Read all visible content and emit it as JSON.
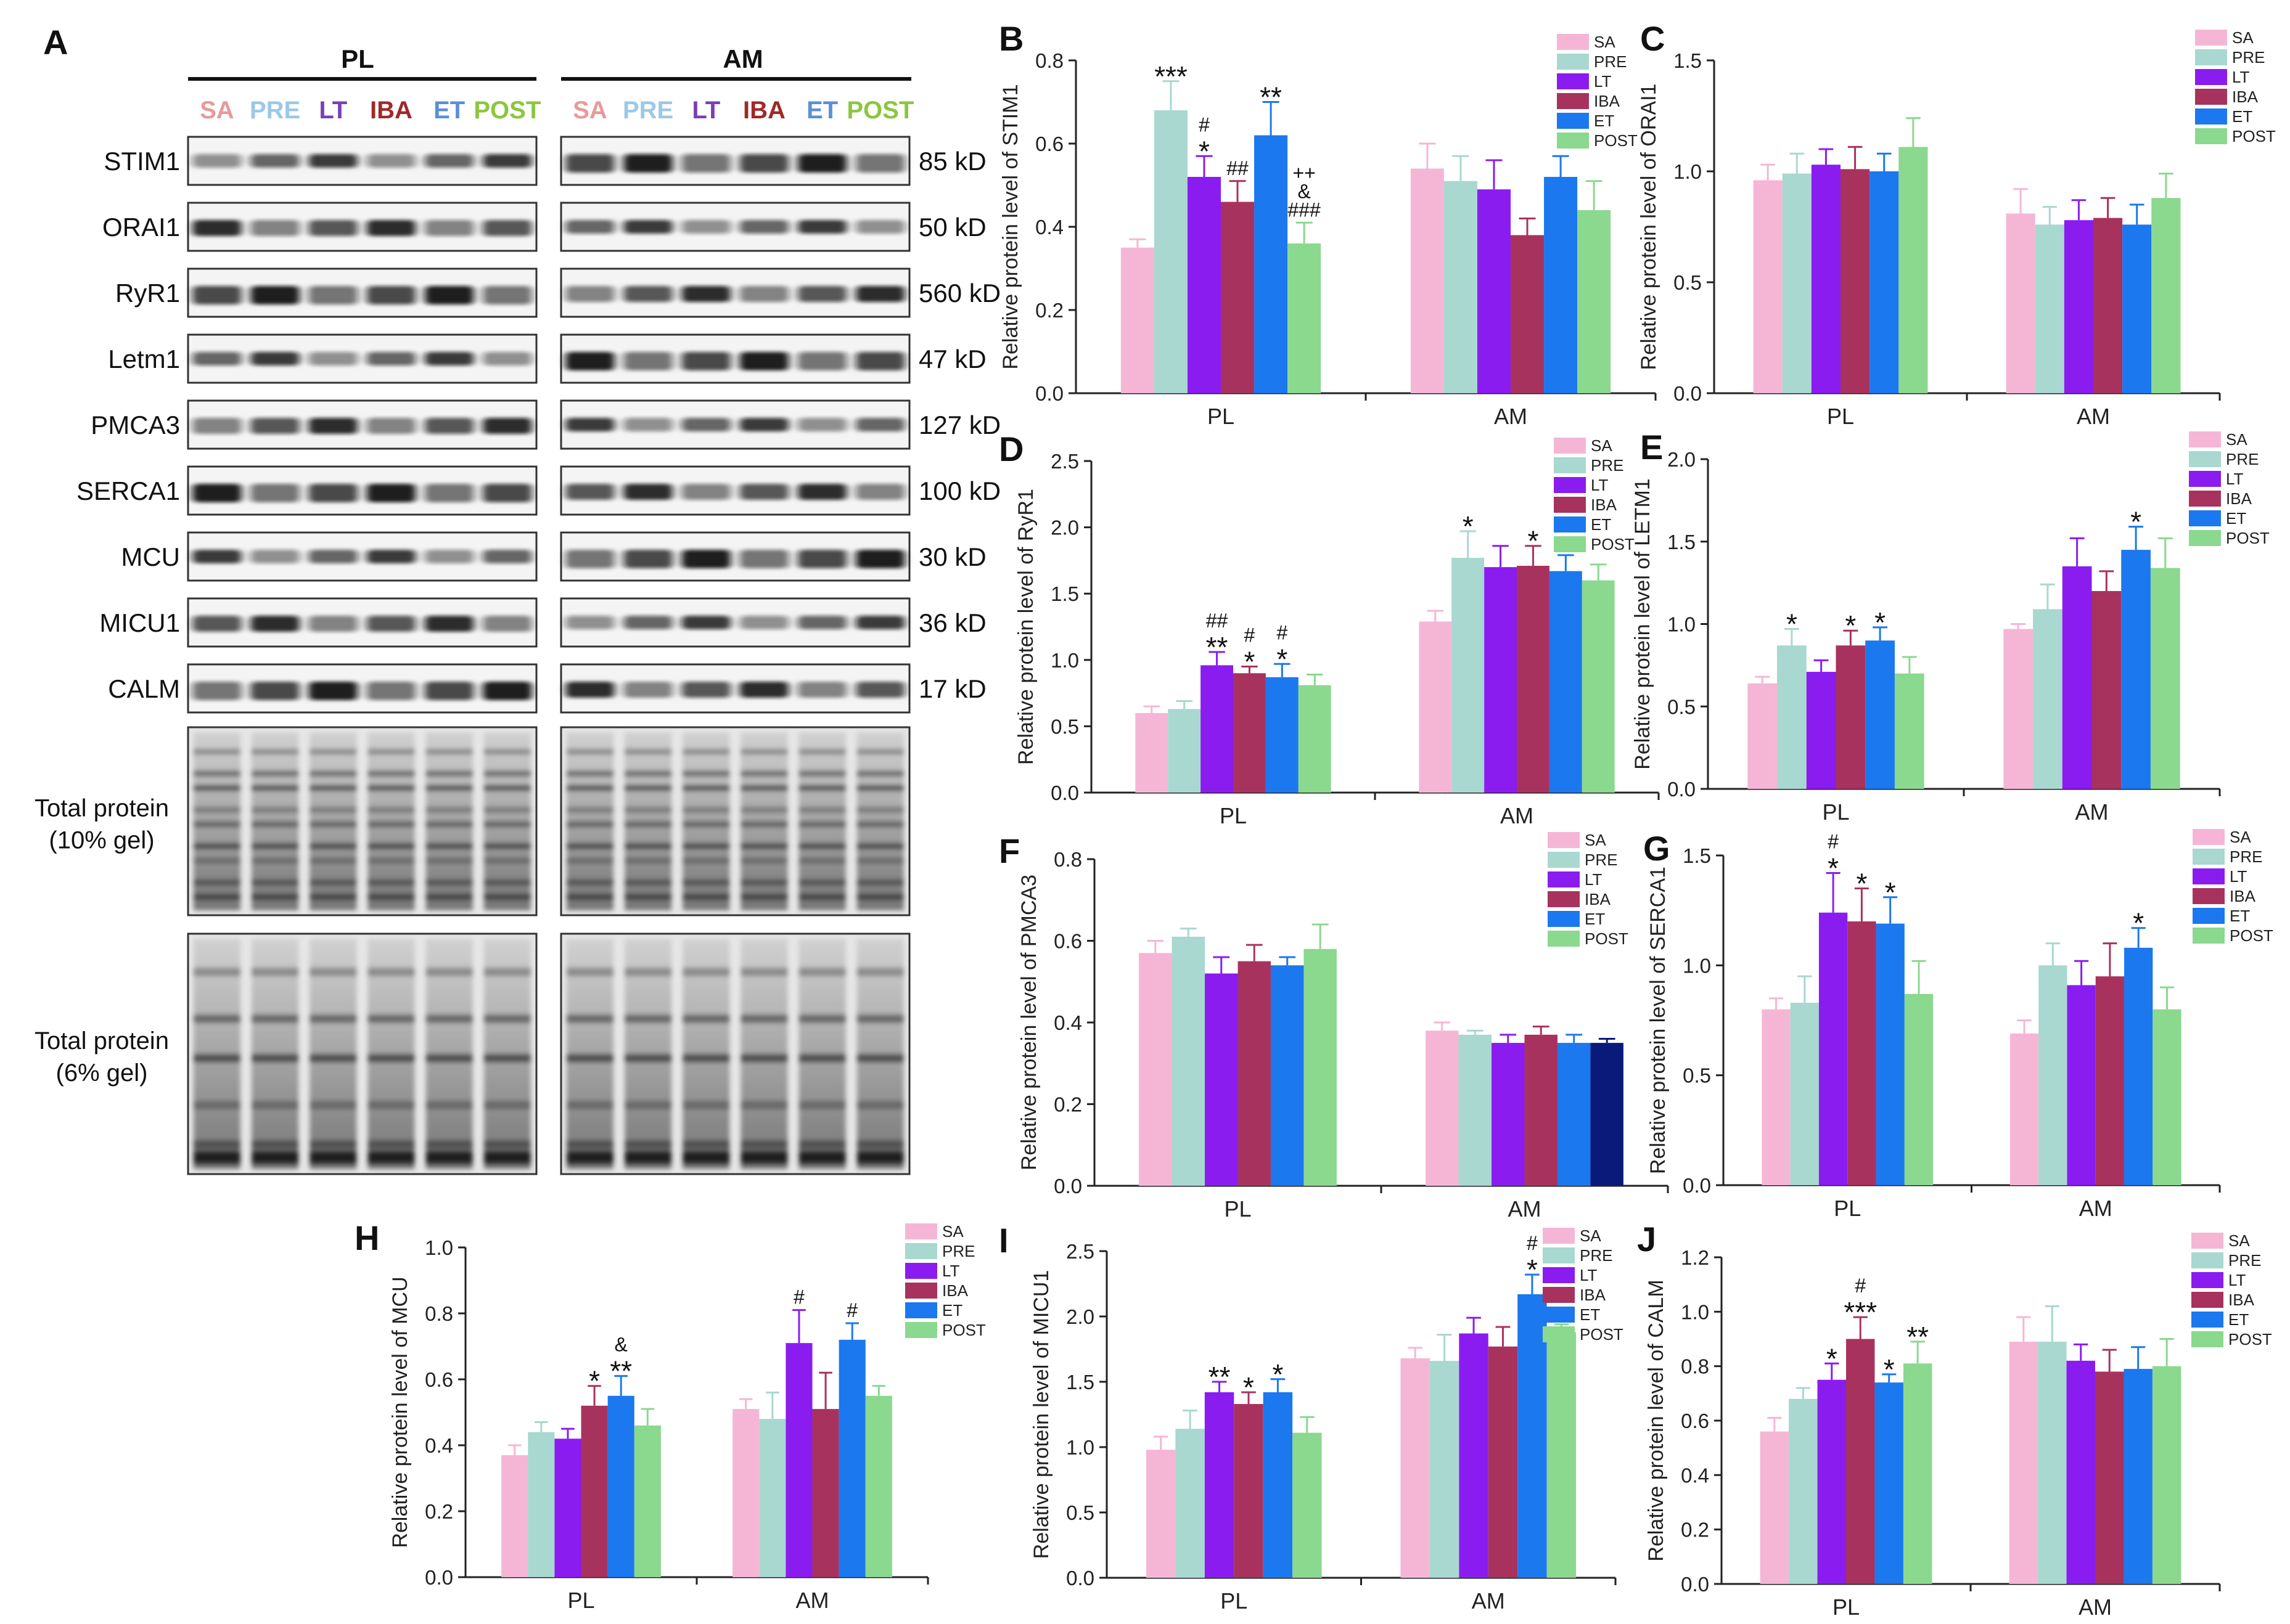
{
  "colors": {
    "SA": "#f5b6d6",
    "PRE": "#a8d8d0",
    "LT": "#8a1cf0",
    "IBA": "#a8325e",
    "ET": "#1b78ee",
    "POST": "#8bd88f",
    "ET_alt": "#0a1a7a",
    "axis": "#222222"
  },
  "blot_panel": {
    "letter": "A",
    "tissue_labels": [
      "PL",
      "AM"
    ],
    "lanes": [
      "SA",
      "PRE",
      "LT",
      "IBA",
      "ET",
      "POST"
    ],
    "lane_colors": [
      "#e89a9a",
      "#9cc8e8",
      "#7b3fb6",
      "#a02828",
      "#5b8fd6",
      "#8cc63f"
    ],
    "proteins": [
      {
        "name": "STIM1",
        "kd": "85 kD"
      },
      {
        "name": "ORAI1",
        "kd": "50 kD"
      },
      {
        "name": "RyR1",
        "kd": "560 kD"
      },
      {
        "name": "Letm1",
        "kd": "47 kD"
      },
      {
        "name": "PMCA3",
        "kd": "127 kD"
      },
      {
        "name": "SERCA1",
        "kd": "100 kD"
      },
      {
        "name": "MCU",
        "kd": "30 kD"
      },
      {
        "name": "MICU1",
        "kd": "36 kD"
      },
      {
        "name": "CALM",
        "kd": "17 kD"
      }
    ],
    "total_labels": [
      [
        "Total protein",
        "(10% gel)"
      ],
      [
        "Total protein",
        "(6% gel)"
      ]
    ]
  },
  "chart_data": [
    {
      "letter": "B",
      "type": "bar",
      "ylabel": "Relative protein level of STIM1",
      "categories": [
        "PL",
        "AM"
      ],
      "ylim": [
        0,
        0.8
      ],
      "yticks": [
        0.0,
        0.2,
        0.4,
        0.6,
        0.8
      ],
      "series": [
        {
          "name": "SA",
          "values": [
            0.35,
            0.54
          ],
          "errors": [
            0.02,
            0.06
          ]
        },
        {
          "name": "PRE",
          "values": [
            0.68,
            0.51
          ],
          "errors": [
            0.07,
            0.06
          ]
        },
        {
          "name": "LT",
          "values": [
            0.52,
            0.49
          ],
          "errors": [
            0.05,
            0.07
          ]
        },
        {
          "name": "IBA",
          "values": [
            0.46,
            0.38
          ],
          "errors": [
            0.05,
            0.04
          ]
        },
        {
          "name": "ET",
          "values": [
            0.62,
            0.52
          ],
          "errors": [
            0.08,
            0.05
          ]
        },
        {
          "name": "POST",
          "values": [
            0.36,
            0.44
          ],
          "errors": [
            0.05,
            0.07
          ]
        }
      ],
      "annotations": [
        {
          "group": 0,
          "series": 1,
          "lines": [
            "***"
          ]
        },
        {
          "group": 0,
          "series": 2,
          "lines": [
            "#",
            "*"
          ]
        },
        {
          "group": 0,
          "series": 3,
          "lines": [
            "##"
          ]
        },
        {
          "group": 0,
          "series": 4,
          "lines": [
            "**"
          ]
        },
        {
          "group": 0,
          "series": 5,
          "lines": [
            "++",
            "&",
            "###"
          ]
        }
      ]
    },
    {
      "letter": "C",
      "type": "bar",
      "ylabel": "Relative protein level of ORAI1",
      "categories": [
        "PL",
        "AM"
      ],
      "ylim": [
        0,
        1.5
      ],
      "yticks": [
        0.0,
        0.5,
        1.0,
        1.5
      ],
      "series": [
        {
          "name": "SA",
          "values": [
            0.96,
            0.81
          ],
          "errors": [
            0.07,
            0.11
          ]
        },
        {
          "name": "PRE",
          "values": [
            0.99,
            0.76
          ],
          "errors": [
            0.09,
            0.08
          ]
        },
        {
          "name": "LT",
          "values": [
            1.03,
            0.78
          ],
          "errors": [
            0.07,
            0.09
          ]
        },
        {
          "name": "IBA",
          "values": [
            1.01,
            0.79
          ],
          "errors": [
            0.1,
            0.09
          ]
        },
        {
          "name": "ET",
          "values": [
            1.0,
            0.76
          ],
          "errors": [
            0.08,
            0.09
          ]
        },
        {
          "name": "POST",
          "values": [
            1.11,
            0.88
          ],
          "errors": [
            0.13,
            0.11
          ]
        }
      ],
      "annotations": []
    },
    {
      "letter": "D",
      "type": "bar",
      "ylabel": "Relative protein level of RyR1",
      "categories": [
        "PL",
        "AM"
      ],
      "ylim": [
        0,
        2.5
      ],
      "yticks": [
        0.0,
        0.5,
        1.0,
        1.5,
        2.0,
        2.5
      ],
      "series": [
        {
          "name": "SA",
          "values": [
            0.6,
            1.29
          ],
          "errors": [
            0.05,
            0.08
          ]
        },
        {
          "name": "PRE",
          "values": [
            0.63,
            1.77
          ],
          "errors": [
            0.06,
            0.2
          ]
        },
        {
          "name": "LT",
          "values": [
            0.96,
            1.7
          ],
          "errors": [
            0.1,
            0.16
          ]
        },
        {
          "name": "IBA",
          "values": [
            0.9,
            1.71
          ],
          "errors": [
            0.05,
            0.15
          ]
        },
        {
          "name": "ET",
          "values": [
            0.87,
            1.67
          ],
          "errors": [
            0.1,
            0.12
          ]
        },
        {
          "name": "POST",
          "values": [
            0.81,
            1.6
          ],
          "errors": [
            0.08,
            0.12
          ]
        }
      ],
      "annotations": [
        {
          "group": 0,
          "series": 2,
          "lines": [
            "##",
            "**"
          ]
        },
        {
          "group": 0,
          "series": 3,
          "lines": [
            "#",
            "*"
          ]
        },
        {
          "group": 0,
          "series": 4,
          "lines": [
            "#",
            "*"
          ]
        },
        {
          "group": 1,
          "series": 1,
          "lines": [
            "*"
          ]
        },
        {
          "group": 1,
          "series": 3,
          "lines": [
            "*"
          ]
        }
      ]
    },
    {
      "letter": "E",
      "type": "bar",
      "ylabel": "Relative protein level of LETM1",
      "categories": [
        "PL",
        "AM"
      ],
      "ylim": [
        0,
        2.0
      ],
      "yticks": [
        0.0,
        0.5,
        1.0,
        1.5,
        2.0
      ],
      "series": [
        {
          "name": "SA",
          "values": [
            0.64,
            0.97
          ],
          "errors": [
            0.04,
            0.03
          ]
        },
        {
          "name": "PRE",
          "values": [
            0.87,
            1.09
          ],
          "errors": [
            0.1,
            0.15
          ]
        },
        {
          "name": "LT",
          "values": [
            0.71,
            1.35
          ],
          "errors": [
            0.07,
            0.17
          ]
        },
        {
          "name": "IBA",
          "values": [
            0.87,
            1.2
          ],
          "errors": [
            0.09,
            0.12
          ]
        },
        {
          "name": "ET",
          "values": [
            0.9,
            1.45
          ],
          "errors": [
            0.08,
            0.14
          ]
        },
        {
          "name": "POST",
          "values": [
            0.7,
            1.34
          ],
          "errors": [
            0.1,
            0.18
          ]
        }
      ],
      "annotations": [
        {
          "group": 0,
          "series": 1,
          "lines": [
            "*"
          ]
        },
        {
          "group": 0,
          "series": 3,
          "lines": [
            "*"
          ]
        },
        {
          "group": 0,
          "series": 4,
          "lines": [
            "*"
          ]
        },
        {
          "group": 1,
          "series": 4,
          "lines": [
            "*"
          ]
        }
      ]
    },
    {
      "letter": "F",
      "type": "bar",
      "ylabel": "Relative protein level of PMCA3",
      "categories": [
        "PL",
        "AM"
      ],
      "ylim": [
        0,
        0.8
      ],
      "yticks": [
        0.0,
        0.2,
        0.4,
        0.6,
        0.8
      ],
      "series": [
        {
          "name": "SA",
          "values": [
            0.57,
            0.38
          ],
          "errors": [
            0.03,
            0.02
          ]
        },
        {
          "name": "PRE",
          "values": [
            0.61,
            0.37
          ],
          "errors": [
            0.02,
            0.01
          ]
        },
        {
          "name": "LT",
          "values": [
            0.52,
            0.35
          ],
          "errors": [
            0.04,
            0.02
          ]
        },
        {
          "name": "IBA",
          "values": [
            0.55,
            0.37
          ],
          "errors": [
            0.04,
            0.02
          ]
        },
        {
          "name": "ET",
          "values": [
            0.54,
            0.35
          ],
          "errors": [
            0.02,
            0.02
          ]
        },
        {
          "name": "POST",
          "values": [
            0.58,
            0.35
          ],
          "errors": [
            0.06,
            0.01
          ]
        }
      ],
      "annotations": []
    },
    {
      "letter": "G",
      "type": "bar",
      "ylabel": "Relative protein level of SERCA1",
      "categories": [
        "PL",
        "AM"
      ],
      "ylim": [
        0,
        1.5
      ],
      "yticks": [
        0.0,
        0.5,
        1.0,
        1.5
      ],
      "series": [
        {
          "name": "SA",
          "values": [
            0.8,
            0.69
          ],
          "errors": [
            0.05,
            0.06
          ]
        },
        {
          "name": "PRE",
          "values": [
            0.83,
            1.0
          ],
          "errors": [
            0.12,
            0.1
          ]
        },
        {
          "name": "LT",
          "values": [
            1.24,
            0.91
          ],
          "errors": [
            0.18,
            0.11
          ]
        },
        {
          "name": "IBA",
          "values": [
            1.2,
            0.95
          ],
          "errors": [
            0.15,
            0.15
          ]
        },
        {
          "name": "ET",
          "values": [
            1.19,
            1.08
          ],
          "errors": [
            0.12,
            0.09
          ]
        },
        {
          "name": "POST",
          "values": [
            0.87,
            0.8
          ],
          "errors": [
            0.15,
            0.1
          ]
        }
      ],
      "annotations": [
        {
          "group": 0,
          "series": 2,
          "lines": [
            "#",
            "*"
          ]
        },
        {
          "group": 0,
          "series": 3,
          "lines": [
            "*"
          ]
        },
        {
          "group": 0,
          "series": 4,
          "lines": [
            "*"
          ]
        },
        {
          "group": 1,
          "series": 4,
          "lines": [
            "*"
          ]
        }
      ]
    },
    {
      "letter": "H",
      "type": "bar",
      "ylabel": "Relative protein level of MCU",
      "categories": [
        "PL",
        "AM"
      ],
      "ylim": [
        0,
        1.0
      ],
      "yticks": [
        0.0,
        0.2,
        0.4,
        0.6,
        0.8,
        1.0
      ],
      "series": [
        {
          "name": "SA",
          "values": [
            0.37,
            0.51
          ],
          "errors": [
            0.03,
            0.03
          ]
        },
        {
          "name": "PRE",
          "values": [
            0.44,
            0.48
          ],
          "errors": [
            0.03,
            0.08
          ]
        },
        {
          "name": "LT",
          "values": [
            0.42,
            0.71
          ],
          "errors": [
            0.03,
            0.1
          ]
        },
        {
          "name": "IBA",
          "values": [
            0.52,
            0.51
          ],
          "errors": [
            0.06,
            0.11
          ]
        },
        {
          "name": "ET",
          "values": [
            0.55,
            0.72
          ],
          "errors": [
            0.06,
            0.05
          ]
        },
        {
          "name": "POST",
          "values": [
            0.46,
            0.55
          ],
          "errors": [
            0.05,
            0.03
          ]
        }
      ],
      "annotations": [
        {
          "group": 0,
          "series": 3,
          "lines": [
            "*"
          ]
        },
        {
          "group": 0,
          "series": 4,
          "lines": [
            "&",
            "**"
          ]
        },
        {
          "group": 1,
          "series": 2,
          "lines": [
            "#"
          ]
        },
        {
          "group": 1,
          "series": 4,
          "lines": [
            "#"
          ]
        }
      ]
    },
    {
      "letter": "I",
      "type": "bar",
      "ylabel": "Relative protein level of MICU1",
      "categories": [
        "PL",
        "AM"
      ],
      "ylim": [
        0,
        2.5
      ],
      "yticks": [
        0.0,
        0.5,
        1.0,
        1.5,
        2.0,
        2.5
      ],
      "series": [
        {
          "name": "SA",
          "values": [
            0.98,
            1.68
          ],
          "errors": [
            0.1,
            0.08
          ]
        },
        {
          "name": "PRE",
          "values": [
            1.14,
            1.66
          ],
          "errors": [
            0.14,
            0.2
          ]
        },
        {
          "name": "LT",
          "values": [
            1.42,
            1.87
          ],
          "errors": [
            0.08,
            0.12
          ]
        },
        {
          "name": "IBA",
          "values": [
            1.33,
            1.77
          ],
          "errors": [
            0.09,
            0.15
          ]
        },
        {
          "name": "ET",
          "values": [
            1.42,
            2.17
          ],
          "errors": [
            0.1,
            0.15
          ]
        },
        {
          "name": "POST",
          "values": [
            1.11,
            1.88
          ],
          "errors": [
            0.12,
            0.06
          ]
        }
      ],
      "annotations": [
        {
          "group": 0,
          "series": 2,
          "lines": [
            "**"
          ]
        },
        {
          "group": 0,
          "series": 3,
          "lines": [
            "*"
          ]
        },
        {
          "group": 0,
          "series": 4,
          "lines": [
            "*"
          ]
        },
        {
          "group": 1,
          "series": 4,
          "lines": [
            "#",
            "*"
          ]
        }
      ]
    },
    {
      "letter": "J",
      "type": "bar",
      "ylabel": "Relative protein level of CALM",
      "categories": [
        "PL",
        "AM"
      ],
      "ylim": [
        0,
        1.2
      ],
      "yticks": [
        0.0,
        0.2,
        0.4,
        0.6,
        0.8,
        1.0,
        1.2
      ],
      "series": [
        {
          "name": "SA",
          "values": [
            0.56,
            0.89
          ],
          "errors": [
            0.05,
            0.09
          ]
        },
        {
          "name": "PRE",
          "values": [
            0.68,
            0.89
          ],
          "errors": [
            0.04,
            0.13
          ]
        },
        {
          "name": "LT",
          "values": [
            0.75,
            0.82
          ],
          "errors": [
            0.06,
            0.06
          ]
        },
        {
          "name": "IBA",
          "values": [
            0.9,
            0.78
          ],
          "errors": [
            0.08,
            0.08
          ]
        },
        {
          "name": "ET",
          "values": [
            0.74,
            0.79
          ],
          "errors": [
            0.03,
            0.08
          ]
        },
        {
          "name": "POST",
          "values": [
            0.81,
            0.8
          ],
          "errors": [
            0.08,
            0.1
          ]
        }
      ],
      "annotations": [
        {
          "group": 0,
          "series": 2,
          "lines": [
            "*"
          ]
        },
        {
          "group": 0,
          "series": 3,
          "lines": [
            "#",
            "***"
          ]
        },
        {
          "group": 0,
          "series": 4,
          "lines": [
            "*"
          ]
        },
        {
          "group": 0,
          "series": 5,
          "lines": [
            "**"
          ]
        }
      ]
    }
  ]
}
